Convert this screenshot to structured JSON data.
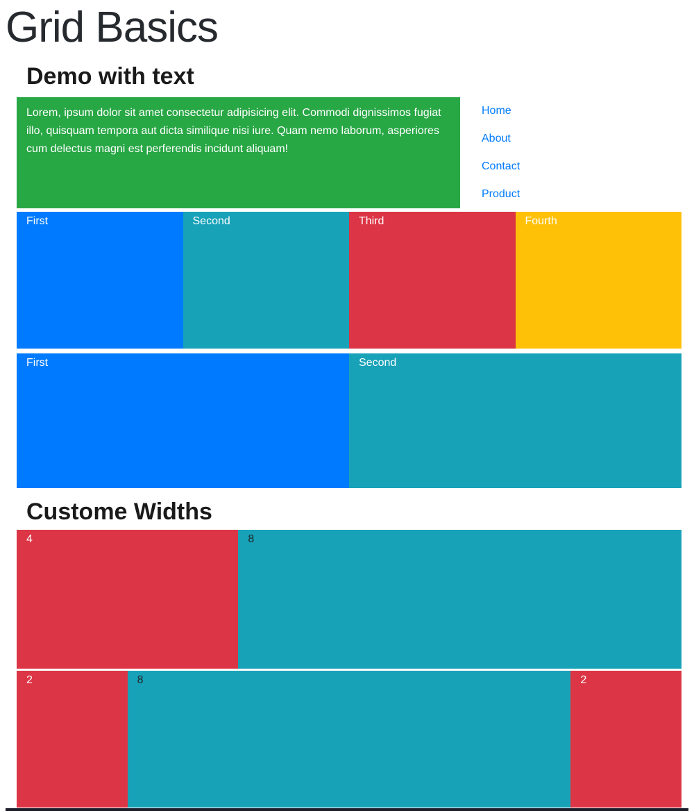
{
  "page": {
    "title": "Grid Basics"
  },
  "sections": {
    "demo": {
      "heading": "Demo with text",
      "intro_text": "Lorem, ipsum dolor sit amet consectetur adipisicing elit. Commodi dignissimos fugiat illo, quisquam tempora aut dicta similique nisi iure. Quam nemo laborum, asperiores cum delectus magni est perferendis incidunt aliquam!"
    },
    "custom": {
      "heading": "Custome Widths"
    }
  },
  "nav": {
    "items": [
      {
        "label": "Home"
      },
      {
        "label": "About"
      },
      {
        "label": "Contact"
      },
      {
        "label": "Product"
      }
    ]
  },
  "grid": {
    "four_columns": [
      {
        "label": "First",
        "color": "#007bff"
      },
      {
        "label": "Second",
        "color": "#17a2b8"
      },
      {
        "label": "Third",
        "color": "#dc3545"
      },
      {
        "label": "Fourth",
        "color": "#ffc107"
      }
    ],
    "two_columns": [
      {
        "label": "First",
        "color": "#007bff"
      },
      {
        "label": "Second",
        "color": "#17a2b8"
      }
    ],
    "custom_row_4_8": [
      {
        "label": "4",
        "color": "#dc3545"
      },
      {
        "label": "8",
        "color": "#17a2b8"
      }
    ],
    "custom_row_2_8_2": [
      {
        "label": "2",
        "color": "#dc3545"
      },
      {
        "label": "8",
        "color": "#17a2b8"
      },
      {
        "label": "2",
        "color": "#dc3545"
      }
    ]
  },
  "colors": {
    "success_green": "#28a745",
    "primary_blue": "#007bff",
    "info_teal": "#17a2b8",
    "danger_red": "#dc3545",
    "warning_yellow": "#ffc107",
    "link_blue": "#007bff",
    "heading_text": "#1a1a1a",
    "footer_dark": "#1d1d2b"
  }
}
